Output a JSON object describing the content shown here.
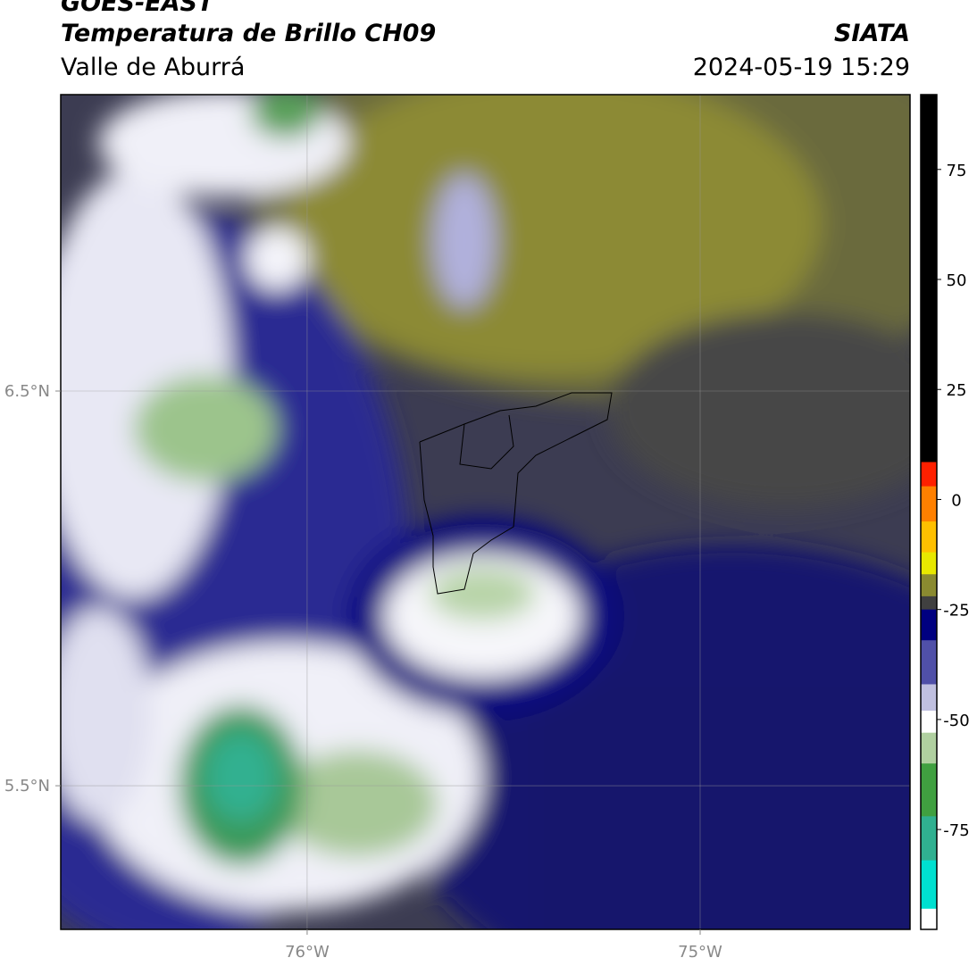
{
  "header": {
    "title": "GOES-EAST",
    "subtitle": "Temperatura de Brillo CH09",
    "region": "Valle de Aburrá",
    "source": "SIATA",
    "datetime": "2024-05-19 15:29"
  },
  "map": {
    "xlim": [
      -76.627,
      -74.466
    ],
    "ylim": [
      5.136,
      7.251
    ],
    "xticks": [
      {
        "value": -76,
        "label": "76°W"
      },
      {
        "value": -75,
        "label": "75°W"
      }
    ],
    "yticks": [
      {
        "value": 6.5,
        "label": "6.5°N"
      },
      {
        "value": 5.5,
        "label": "5.5°N"
      }
    ],
    "grid": true
  },
  "colorbar": {
    "lim": [
      -97.7,
      92
    ],
    "ticks": [
      75,
      50,
      25,
      0,
      -25,
      -50,
      -75
    ],
    "segments": [
      {
        "from": 92,
        "to": 8.5,
        "color": "#000000"
      },
      {
        "from": 8.5,
        "to": 3,
        "color": "#ff2000"
      },
      {
        "from": 3,
        "to": -5,
        "color": "#ff8000"
      },
      {
        "from": -5,
        "to": -12,
        "color": "#ffc000"
      },
      {
        "from": -12,
        "to": -17,
        "color": "#e8e800"
      },
      {
        "from": -17,
        "to": -22,
        "color": "#8a8a30"
      },
      {
        "from": -22,
        "to": -25,
        "color": "#404040"
      },
      {
        "from": -25,
        "to": -32,
        "color": "#000080"
      },
      {
        "from": -32,
        "to": -42,
        "color": "#5050a8"
      },
      {
        "from": -42,
        "to": -48,
        "color": "#c0c0e0"
      },
      {
        "from": -48,
        "to": -53,
        "color": "#ffffff"
      },
      {
        "from": -53,
        "to": -60,
        "color": "#b0d0a0"
      },
      {
        "from": -60,
        "to": -72,
        "color": "#40a040"
      },
      {
        "from": -72,
        "to": -82,
        "color": "#30b090"
      },
      {
        "from": -82,
        "to": -93,
        "color": "#00e0d0"
      },
      {
        "from": -93,
        "to": -97.7,
        "color": "#ffffff"
      }
    ]
  }
}
